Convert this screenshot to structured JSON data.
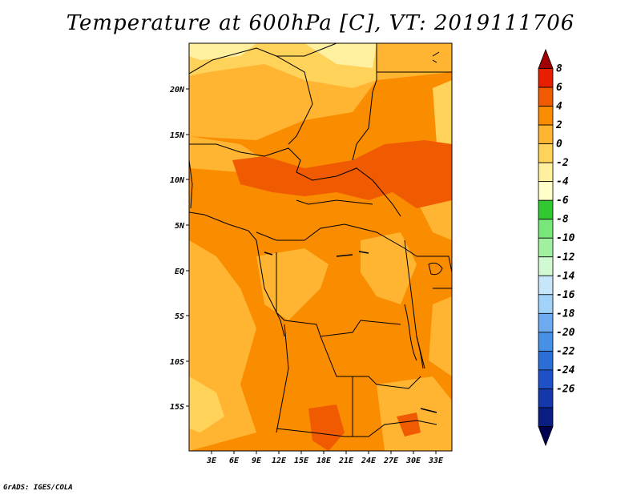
{
  "title": "Temperature at 600hPa [C], VT: 2019111706",
  "credit": "GrADS: IGES/COLA",
  "map": {
    "x_ticks": [
      "3E",
      "6E",
      "9E",
      "12E",
      "15E",
      "18E",
      "21E",
      "24E",
      "27E",
      "30E",
      "33E"
    ],
    "y_ticks": [
      "20N",
      "15N",
      "10N",
      "5N",
      "EQ",
      "5S",
      "10S",
      "15S"
    ],
    "lon_range": [
      0,
      35
    ],
    "lat_range": [
      -20,
      24.5
    ]
  },
  "colorbar": {
    "labels": [
      "8",
      "6",
      "4",
      "2",
      "0",
      "-2",
      "-4",
      "-6",
      "-8",
      "-10",
      "-12",
      "-14",
      "-16",
      "-18",
      "-20",
      "-22",
      "-24",
      "-26"
    ],
    "colors": [
      "#a00000",
      "#e81e00",
      "#f05a00",
      "#fa8c00",
      "#ffb432",
      "#ffd25a",
      "#fff0a0",
      "#ffffc8",
      "#32c832",
      "#78e678",
      "#a0f0a0",
      "#d2fad2",
      "#c8e6fa",
      "#a0d2fa",
      "#6eaaf0",
      "#4690e6",
      "#2a6ed6",
      "#1e50c8",
      "#1438aa",
      "#0a1e82",
      "#000050"
    ],
    "colors_note": ""
  }
}
